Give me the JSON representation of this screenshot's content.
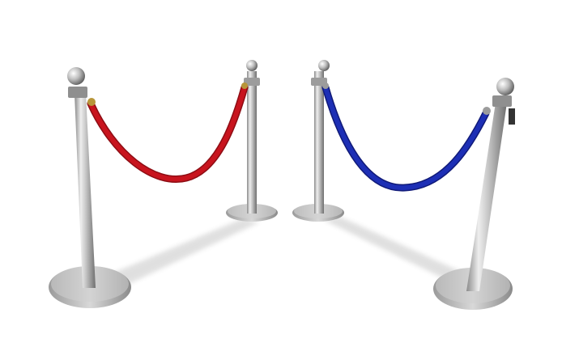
{
  "image": {
    "subject": "stanchions-with-velvet-ropes",
    "background_color": "#ffffff"
  },
  "colors": {
    "steel_light": "#e6e6e6",
    "steel_mid": "#b9b9b9",
    "steel_dark": "#7d7d7d",
    "rope_red": "#c8141e",
    "rope_red_dark": "#8e0d14",
    "rope_blue": "#1d2fb5",
    "rope_blue_dark": "#101a78",
    "hook_brass": "#b8963a"
  },
  "stanchions": [
    {
      "name": "post-front-left"
    },
    {
      "name": "post-back-left"
    },
    {
      "name": "post-back-right"
    },
    {
      "name": "post-front-right"
    }
  ],
  "ropes": [
    {
      "name": "rope-red",
      "color": "red"
    },
    {
      "name": "rope-blue",
      "color": "blue"
    }
  ]
}
